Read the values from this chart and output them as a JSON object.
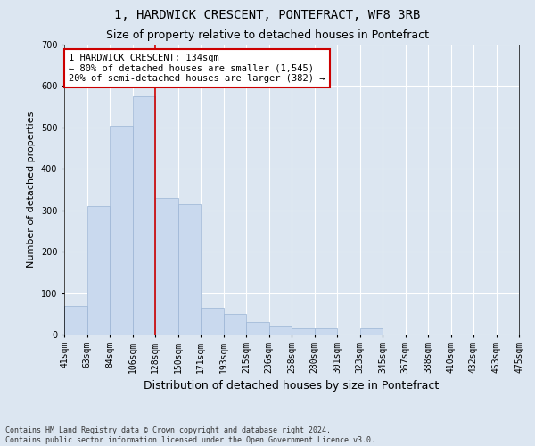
{
  "title": "1, HARDWICK CRESCENT, PONTEFRACT, WF8 3RB",
  "subtitle": "Size of property relative to detached houses in Pontefract",
  "xlabel": "Distribution of detached houses by size in Pontefract",
  "ylabel": "Number of detached properties",
  "footnote": "Contains HM Land Registry data © Crown copyright and database right 2024.\nContains public sector information licensed under the Open Government Licence v3.0.",
  "bar_values": [
    70,
    310,
    505,
    575,
    330,
    315,
    65,
    50,
    30,
    20,
    15,
    15,
    0,
    15,
    0,
    0,
    0,
    0,
    0,
    0
  ],
  "x_labels": [
    "41sqm",
    "63sqm",
    "84sqm",
    "106sqm",
    "128sqm",
    "150sqm",
    "171sqm",
    "193sqm",
    "215sqm",
    "236sqm",
    "258sqm",
    "280sqm",
    "301sqm",
    "323sqm",
    "345sqm",
    "367sqm",
    "388sqm",
    "410sqm",
    "432sqm",
    "453sqm",
    "475sqm"
  ],
  "bar_color": "#c9d9ee",
  "bar_edge_color": "#9ab4d4",
  "red_line_x": 4,
  "annotation_line1": "1 HARDWICK CRESCENT: 134sqm",
  "annotation_line2": "← 80% of detached houses are smaller (1,545)",
  "annotation_line3": "20% of semi-detached houses are larger (382) →",
  "annotation_box_facecolor": "#ffffff",
  "annotation_box_edgecolor": "#cc0000",
  "red_line_color": "#cc0000",
  "ylim": [
    0,
    700
  ],
  "yticks": [
    0,
    100,
    200,
    300,
    400,
    500,
    600,
    700
  ],
  "bg_color": "#dce6f1",
  "plot_bg_color": "#dce6f1",
  "grid_color": "#ffffff",
  "title_fontsize": 10,
  "subtitle_fontsize": 9,
  "ylabel_fontsize": 8,
  "xlabel_fontsize": 9,
  "tick_fontsize": 7,
  "annotation_fontsize": 7.5,
  "footnote_fontsize": 6
}
